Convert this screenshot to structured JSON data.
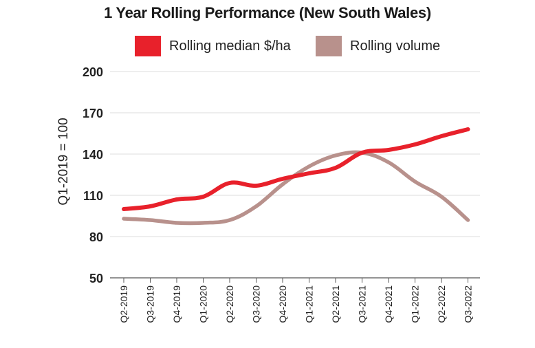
{
  "chart_data": {
    "type": "line",
    "title": "1 Year Rolling Performance (New South Wales)",
    "ylabel": "Q1-2019 = 100",
    "xlabel": "",
    "ylim": [
      50,
      200
    ],
    "yticks": [
      50,
      80,
      110,
      140,
      170,
      200
    ],
    "categories": [
      "Q2-2019",
      "Q3-2019",
      "Q4-2019",
      "Q1-2020",
      "Q2-2020",
      "Q3-2020",
      "Q4-2020",
      "Q1-2021",
      "Q2-2021",
      "Q3-2021",
      "Q4-2021",
      "Q1-2022",
      "Q2-2022",
      "Q3-2022"
    ],
    "grid": true,
    "legend_position": "top-center",
    "series": [
      {
        "name": "Rolling median $/ha",
        "color": "#e8212b",
        "values": [
          100,
          102,
          107,
          109,
          119,
          117,
          122,
          126,
          130,
          141,
          143,
          147,
          153,
          158
        ]
      },
      {
        "name": "Rolling volume",
        "color": "#b8918c",
        "values": [
          93,
          92,
          90,
          90,
          92,
          102,
          118,
          131,
          139,
          141,
          134,
          120,
          109,
          92
        ]
      }
    ]
  }
}
